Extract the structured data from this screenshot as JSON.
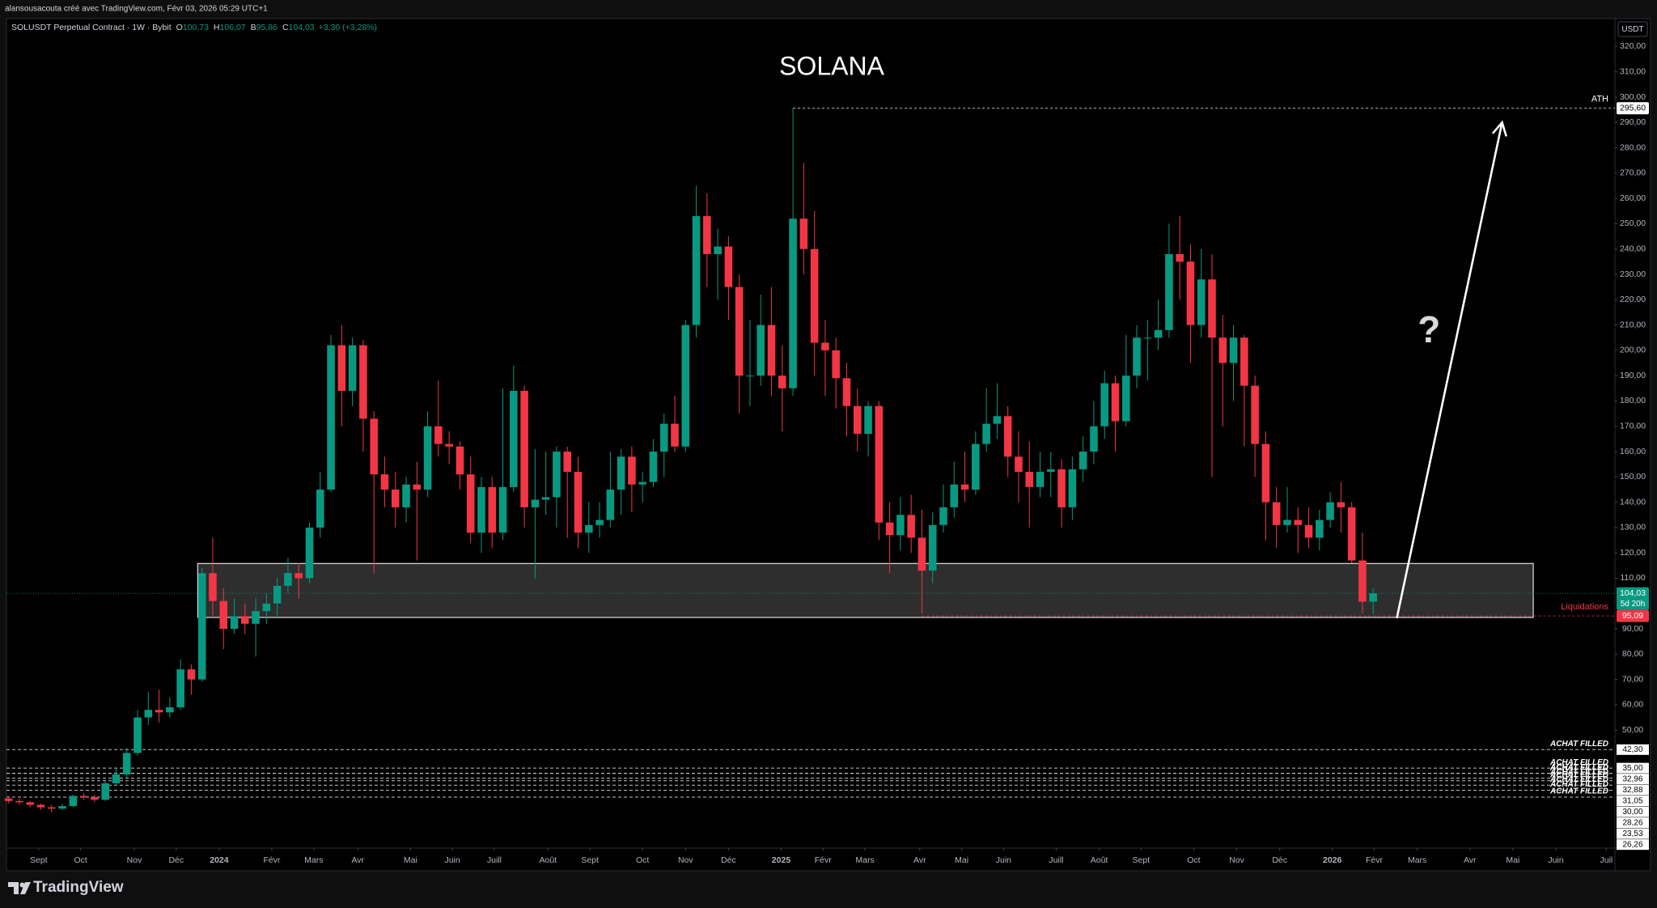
{
  "header": "alansousacouta créé avec TradingView.com, Févr 03, 2026 05:29 UTC+1",
  "footer": "TradingView",
  "chart_data": {
    "type": "candlestick",
    "title": "SOLANA",
    "legend": {
      "symbol": "SOLUSDT Perpetual Contract · 1W · Bybit",
      "ohlc": [
        {
          "key": "O",
          "label": "100,73"
        },
        {
          "key": "H",
          "label": "106,07"
        },
        {
          "key": "B",
          "label": "95,86"
        },
        {
          "key": "C",
          "label": "104,03"
        }
      ],
      "change": "+3,30 (+3,28%)"
    },
    "currency": "USDT",
    "colors": {
      "up": "#089981",
      "down": "#f23645"
    },
    "open": [
      23,
      22,
      21.5,
      20.5,
      19.5,
      19,
      20,
      24,
      23.5,
      22.5,
      29,
      32.5,
      41,
      55,
      58,
      57,
      59,
      74,
      70,
      112,
      101,
      90,
      95,
      92,
      97,
      100,
      107,
      112,
      110,
      130,
      145,
      202,
      184,
      202,
      173,
      151,
      145,
      138,
      147,
      145,
      170,
      163,
      162,
      151,
      128,
      146,
      128,
      146,
      184,
      138,
      141,
      142,
      160,
      152,
      128,
      131,
      133,
      145,
      158,
      147,
      148,
      160,
      171,
      162,
      210,
      253,
      238,
      241,
      225,
      190,
      190,
      210,
      190,
      185,
      252,
      240,
      203,
      200,
      189,
      178,
      167,
      178,
      132,
      127,
      135,
      126,
      113,
      131,
      138,
      147,
      145,
      163,
      171,
      174,
      158,
      152,
      146,
      152,
      153,
      138,
      153,
      160,
      170,
      187,
      172,
      190,
      205,
      205,
      208,
      238,
      235,
      210,
      228,
      205,
      195,
      205,
      186,
      163,
      140,
      131,
      133,
      131,
      126,
      133,
      140,
      138,
      117,
      100.73
    ],
    "high": [
      24,
      23,
      22,
      21,
      20.5,
      21,
      24.5,
      25,
      24.5,
      30,
      35,
      43,
      58,
      65,
      66,
      63,
      78,
      76,
      114,
      126,
      106,
      102,
      100,
      102,
      104,
      110,
      118,
      116,
      132,
      152,
      206,
      210,
      205,
      204,
      176,
      158,
      152,
      150,
      156,
      176,
      188,
      168,
      164,
      158,
      150,
      150,
      185,
      194,
      186,
      161,
      160,
      162,
      162,
      158,
      140,
      140,
      160,
      161,
      162,
      152,
      165,
      175,
      182,
      212,
      265,
      262,
      248,
      245,
      230,
      212,
      222,
      225,
      202,
      295.6,
      274,
      255,
      212,
      205,
      195,
      185,
      180,
      180,
      140,
      142,
      143,
      137,
      136,
      147,
      156,
      160,
      168,
      185,
      187,
      178,
      168,
      164,
      160,
      160,
      157,
      158,
      166,
      180,
      192,
      190,
      206,
      210,
      212,
      220,
      250,
      253,
      242,
      240,
      238,
      214,
      210,
      206,
      190,
      168,
      146,
      146,
      138,
      138,
      137,
      144,
      148,
      140,
      128,
      106.07
    ],
    "low": [
      21,
      20.5,
      19.5,
      18.5,
      17.5,
      18.5,
      19.5,
      22.5,
      21.5,
      22,
      28,
      31,
      40,
      52,
      53,
      55,
      58,
      64,
      69,
      95,
      82,
      88,
      88,
      79,
      92,
      95,
      104,
      102,
      108,
      126,
      144,
      170,
      178,
      160,
      112,
      138,
      130,
      132,
      117,
      142,
      158,
      155,
      145,
      124,
      120,
      122,
      125,
      144,
      130,
      110,
      135,
      130,
      126,
      122,
      120,
      126,
      130,
      135,
      136,
      140,
      146,
      150,
      160,
      160,
      205,
      225,
      220,
      212,
      175,
      178,
      186,
      182,
      168,
      182,
      230,
      190,
      182,
      177,
      166,
      160,
      158,
      125,
      112,
      121,
      120,
      96,
      108,
      128,
      134,
      140,
      143,
      160,
      165,
      150,
      140,
      130,
      142,
      142,
      130,
      133,
      148,
      155,
      165,
      160,
      170,
      185,
      188,
      200,
      205,
      220,
      195,
      205,
      150,
      170,
      180,
      162,
      150,
      125,
      122,
      128,
      120,
      122,
      121,
      130,
      128,
      116,
      96,
      95.86
    ],
    "close": [
      22,
      21.5,
      20.5,
      19.5,
      19,
      20,
      24,
      23.5,
      22.5,
      29,
      32.5,
      41,
      55,
      58,
      57,
      59,
      74,
      70,
      112,
      101,
      90,
      95,
      92,
      97,
      100,
      107,
      112,
      110,
      130,
      145,
      202,
      184,
      202,
      173,
      151,
      145,
      138,
      147,
      145,
      170,
      163,
      162,
      151,
      128,
      146,
      128,
      146,
      184,
      138,
      141,
      142,
      160,
      152,
      128,
      131,
      133,
      145,
      158,
      147,
      148,
      160,
      171,
      162,
      210,
      253,
      238,
      241,
      225,
      190,
      190,
      210,
      190,
      185,
      252,
      240,
      203,
      200,
      189,
      178,
      167,
      178,
      132,
      127,
      135,
      126,
      113,
      131,
      138,
      147,
      145,
      163,
      171,
      174,
      158,
      152,
      146,
      152,
      153,
      138,
      153,
      160,
      170,
      187,
      172,
      190,
      205,
      205,
      208,
      238,
      235,
      210,
      228,
      205,
      195,
      205,
      186,
      163,
      140,
      131,
      133,
      131,
      126,
      133,
      140,
      138,
      117,
      100.73,
      104.03
    ],
    "xlim": [
      -0.2,
      149.5
    ],
    "xticks": [
      {
        "value": 2.8,
        "label": "Sept"
      },
      {
        "value": 6.7,
        "label": "Oct"
      },
      {
        "value": 11.7,
        "label": "Nov"
      },
      {
        "value": 15.6,
        "label": "Déc"
      },
      {
        "value": 19.6,
        "label": "2024"
      },
      {
        "value": 24.5,
        "label": "Févr"
      },
      {
        "value": 28.4,
        "label": "Mars"
      },
      {
        "value": 32.5,
        "label": "Avr"
      },
      {
        "value": 37.4,
        "label": "Mai"
      },
      {
        "value": 41.3,
        "label": "Juin"
      },
      {
        "value": 45.2,
        "label": "Juill"
      },
      {
        "value": 50.2,
        "label": "Août"
      },
      {
        "value": 54.1,
        "label": "Sept"
      },
      {
        "value": 59.0,
        "label": "Oct"
      },
      {
        "value": 63.0,
        "label": "Nov"
      },
      {
        "value": 67.0,
        "label": "Déc"
      },
      {
        "value": 71.9,
        "label": "2025"
      },
      {
        "value": 75.8,
        "label": "Févr"
      },
      {
        "value": 79.7,
        "label": "Mars"
      },
      {
        "value": 84.8,
        "label": "Avr"
      },
      {
        "value": 88.7,
        "label": "Mai"
      },
      {
        "value": 92.6,
        "label": "Juin"
      },
      {
        "value": 97.5,
        "label": "Juill"
      },
      {
        "value": 101.5,
        "label": "Août"
      },
      {
        "value": 105.4,
        "label": "Sept"
      },
      {
        "value": 110.3,
        "label": "Oct"
      },
      {
        "value": 114.3,
        "label": "Nov"
      },
      {
        "value": 118.3,
        "label": "Déc"
      },
      {
        "value": 123.2,
        "label": "2026"
      },
      {
        "value": 127.1,
        "label": "Févr"
      },
      {
        "value": 131.1,
        "label": "Mars"
      },
      {
        "value": 136.0,
        "label": "Avr"
      },
      {
        "value": 140.0,
        "label": "Mai"
      },
      {
        "value": 144.0,
        "label": "Juin"
      },
      {
        "value": 148.7,
        "label": "Juil"
      }
    ],
    "ylim": [
      3.4,
      331
    ],
    "yticks": [
      {
        "value": 320,
        "label": "320,00"
      },
      {
        "value": 310,
        "label": "310,00"
      },
      {
        "value": 300,
        "label": "300,00"
      },
      {
        "value": 290,
        "label": "290,00"
      },
      {
        "value": 280,
        "label": "280,00"
      },
      {
        "value": 270,
        "label": "270,00"
      },
      {
        "value": 260,
        "label": "260,00"
      },
      {
        "value": 250,
        "label": "250,00"
      },
      {
        "value": 240,
        "label": "240,00"
      },
      {
        "value": 230,
        "label": "230,00"
      },
      {
        "value": 220,
        "label": "220,00"
      },
      {
        "value": 210,
        "label": "210,00"
      },
      {
        "value": 200,
        "label": "200,00"
      },
      {
        "value": 190,
        "label": "190,00"
      },
      {
        "value": 180,
        "label": "180,00"
      },
      {
        "value": 170,
        "label": "170,00"
      },
      {
        "value": 160,
        "label": "160,00"
      },
      {
        "value": 150,
        "label": "150,00"
      },
      {
        "value": 140,
        "label": "140,00"
      },
      {
        "value": 130,
        "label": "130,00"
      },
      {
        "value": 120,
        "label": "120,00"
      },
      {
        "value": 110,
        "label": "110,00"
      },
      {
        "value": 90,
        "label": "90,00"
      },
      {
        "value": 80,
        "label": "80,00"
      },
      {
        "value": 70,
        "label": "70,00"
      },
      {
        "value": 60,
        "label": "60,00"
      },
      {
        "value": 50,
        "label": "50,00"
      }
    ],
    "price_lines": [
      {
        "value": 295.6,
        "label": "295,60",
        "text": "ATH",
        "from": 73,
        "color": "#ffffff"
      },
      {
        "value": 104.03,
        "label": "104,03",
        "sublabel": "5d 20h",
        "color": "#089981"
      },
      {
        "value": 95.09,
        "label": "95,09",
        "text": "Liquidations",
        "from": 85,
        "color": "#f23645"
      }
    ],
    "achat": {
      "text": "ACHAT FILLED",
      "lines": [
        {
          "value": 42.3,
          "label": "42,30"
        },
        {
          "value": 35,
          "label": "35,00"
        },
        {
          "value": 32.96,
          "label": "32,96"
        },
        {
          "value": 32.88,
          "label": "32,88"
        },
        {
          "value": 31.05,
          "label": "31,05"
        },
        {
          "value": 30,
          "label": "30,00"
        },
        {
          "value": 28.26,
          "label": "28,26"
        },
        {
          "value": 23.53,
          "label": "23,53"
        },
        {
          "value": 26.26,
          "label": "26,26"
        }
      ]
    },
    "zone": {
      "x": [
        17.6,
        141.9
      ],
      "y": [
        94.5,
        115.8
      ]
    },
    "arrow": {
      "from": [
        129.2,
        94.2
      ],
      "to": [
        139.0,
        290
      ]
    },
    "question": {
      "text": "?",
      "x": 132.2,
      "y": 207
    }
  }
}
